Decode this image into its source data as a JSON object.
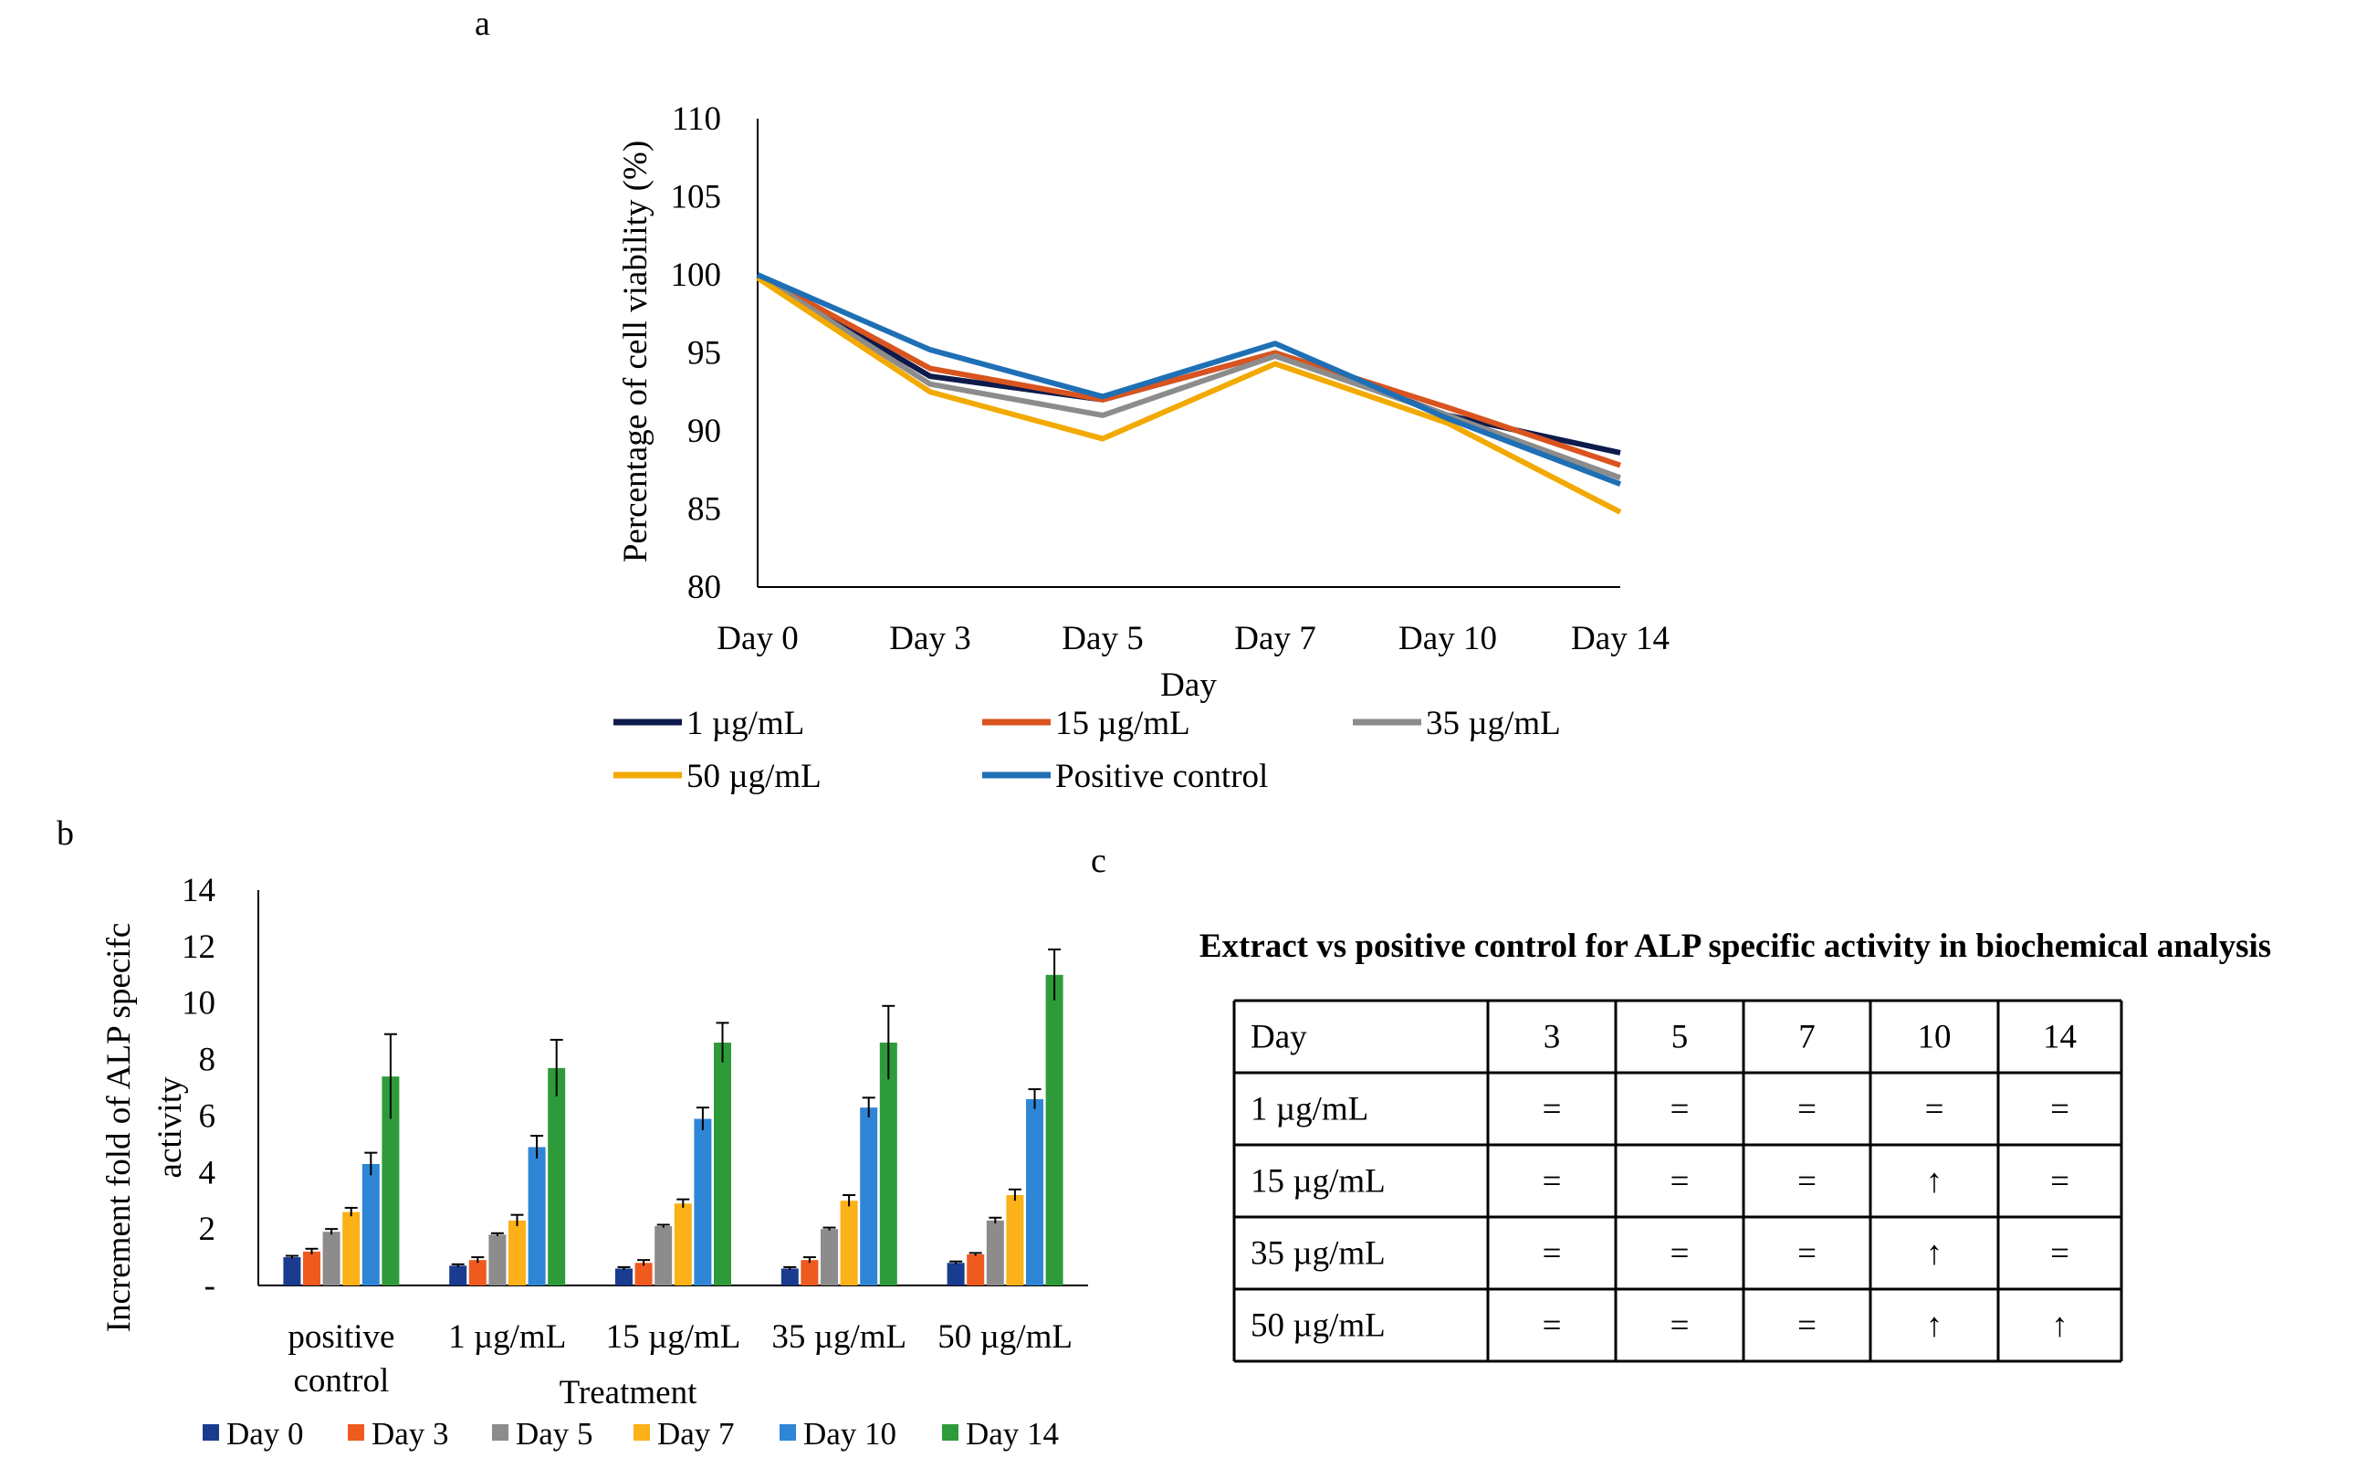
{
  "panels": {
    "a": "a",
    "b": "b",
    "c": "c"
  },
  "chart_data": [
    {
      "type": "line",
      "ylabel": "Percentage of cell viability (%)",
      "xlabel": "Day",
      "ylim": [
        80,
        110
      ],
      "yticks": [
        80,
        85,
        90,
        95,
        100,
        105,
        110
      ],
      "categories": [
        "Day 0",
        "Day 3",
        "Day 5",
        "Day 7",
        "Day 10",
        "Day 14"
      ],
      "series": [
        {
          "name": "1 µg/mL",
          "color": "#0d1b4c",
          "values": [
            100,
            93.5,
            92.0,
            95.0,
            91.0,
            88.6
          ]
        },
        {
          "name": "15 µg/mL",
          "color": "#d9541e",
          "values": [
            100,
            94.0,
            92.0,
            95.0,
            91.5,
            87.8
          ]
        },
        {
          "name": "35 µg/mL",
          "color": "#8c8c8c",
          "values": [
            100,
            93.0,
            91.0,
            94.8,
            91.0,
            87.0
          ]
        },
        {
          "name": "50 µg/mL",
          "color": "#f2a900",
          "values": [
            99.8,
            92.5,
            89.5,
            94.3,
            90.5,
            84.8
          ]
        },
        {
          "name": "Positive control",
          "color": "#1f6fb5",
          "values": [
            100,
            95.2,
            92.2,
            95.6,
            90.8,
            86.6
          ]
        }
      ]
    },
    {
      "type": "bar",
      "ylabel_line1": "Increment fold of ALP specifc",
      "ylabel_line2": "activity",
      "xlabel": "Treatment",
      "ylim": [
        0,
        14
      ],
      "ytick_labels": [
        "-",
        "2",
        "4",
        "6",
        "8",
        "10",
        "12",
        "14"
      ],
      "categories": [
        [
          "positive",
          "control"
        ],
        [
          "1 µg/mL"
        ],
        [
          "15 µg/mL"
        ],
        [
          "35 µg/mL"
        ],
        [
          "50 µg/mL"
        ]
      ],
      "series": [
        {
          "name": "Day 0",
          "color": "#1a3c8f",
          "values": [
            1.0,
            0.7,
            0.6,
            0.6,
            0.8
          ],
          "errors": [
            0.05,
            0.05,
            0.05,
            0.05,
            0.05
          ]
        },
        {
          "name": "Day 3",
          "color": "#ef5a1e",
          "values": [
            1.2,
            0.9,
            0.8,
            0.9,
            1.1
          ],
          "errors": [
            0.1,
            0.1,
            0.1,
            0.1,
            0.05
          ]
        },
        {
          "name": "Day 5",
          "color": "#8c8c8c",
          "values": [
            1.9,
            1.8,
            2.1,
            2.0,
            2.3
          ],
          "errors": [
            0.1,
            0.05,
            0.05,
            0.05,
            0.1
          ]
        },
        {
          "name": "Day 7",
          "color": "#fbb117",
          "values": [
            2.6,
            2.3,
            2.9,
            3.0,
            3.2
          ],
          "errors": [
            0.15,
            0.2,
            0.15,
            0.2,
            0.2
          ]
        },
        {
          "name": "Day 10",
          "color": "#2f86d6",
          "values": [
            4.3,
            4.9,
            5.9,
            6.3,
            6.6
          ],
          "errors": [
            0.4,
            0.4,
            0.4,
            0.35,
            0.35
          ]
        },
        {
          "name": "Day 14",
          "color": "#2e9b3a",
          "values": [
            7.4,
            7.7,
            8.6,
            8.6,
            11.0
          ],
          "errors": [
            1.5,
            1.0,
            0.7,
            1.3,
            0.9
          ]
        }
      ]
    }
  ],
  "table": {
    "title": "Extract vs positive control for ALP specific activity in biochemical analysis",
    "header": [
      "Day",
      "3",
      "5",
      "7",
      "10",
      "14"
    ],
    "rows": [
      [
        "1 µg/mL",
        "=",
        "=",
        "=",
        "=",
        "="
      ],
      [
        "15 µg/mL",
        "=",
        "=",
        "=",
        "↑",
        "="
      ],
      [
        "35 µg/mL",
        "=",
        "=",
        "=",
        "↑",
        "="
      ],
      [
        "50 µg/mL",
        "=",
        "=",
        "=",
        "↑",
        "↑"
      ]
    ]
  }
}
